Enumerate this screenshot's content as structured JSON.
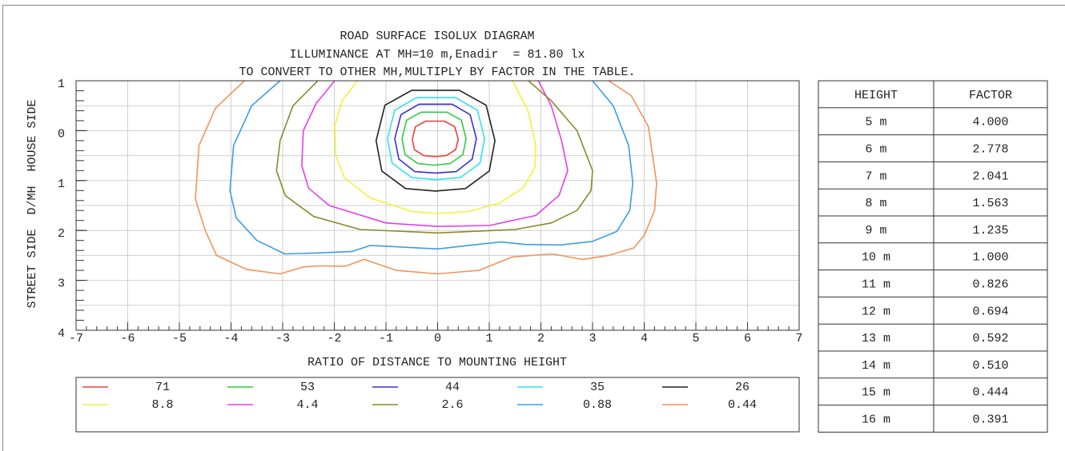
{
  "chart_data": {
    "type": "contour",
    "title": "ROAD SURFACE ISOLUX DIAGRAM",
    "subtitle": [
      "ILLUMINANCE AT MH=10 m,Enadir  = 81.80 lx",
      "TO CONVERT TO OTHER MH,MULTIPLY BY FACTOR IN THE TABLE."
    ],
    "xlabel": "RATIO OF DISTANCE TO MOUNTING HEIGHT",
    "ylabel": "STREET SIDE  D/MH  HOUSE SIDE",
    "xlim": [
      -7,
      7
    ],
    "ylim": [
      4,
      -1
    ],
    "xticks": [
      -7,
      -6,
      -5,
      -4,
      -3,
      -2,
      -1,
      0,
      1,
      2,
      3,
      4,
      5,
      6,
      7
    ],
    "yticks": [
      {
        "value": -1,
        "label": "1"
      },
      0,
      1,
      2,
      3,
      4
    ],
    "grid": true,
    "ygrid_step": 0.5,
    "minor_tick_step": 0.2,
    "series": [
      {
        "name": "71",
        "color": "#e8413c",
        "closed": true,
        "x": [
          -0.49,
          -0.43,
          -0.23,
          0.13,
          0.33,
          0.4,
          0.35,
          0.17,
          -0.05,
          -0.27,
          -0.45
        ],
        "y": [
          0.17,
          -0.08,
          -0.19,
          -0.19,
          -0.08,
          0.17,
          0.38,
          0.5,
          0.52,
          0.5,
          0.38
        ]
      },
      {
        "name": "53",
        "color": "#2ecc40",
        "closed": true,
        "x": [
          -0.69,
          -0.6,
          -0.32,
          0.18,
          0.46,
          0.55,
          0.49,
          0.24,
          -0.07,
          -0.38,
          -0.63
        ],
        "y": [
          0.16,
          -0.21,
          -0.37,
          -0.37,
          -0.21,
          0.16,
          0.48,
          0.66,
          0.69,
          0.66,
          0.48
        ]
      },
      {
        "name": "44",
        "color": "#3a2fd0",
        "closed": true,
        "x": [
          -0.83,
          -0.71,
          -0.36,
          0.28,
          0.63,
          0.75,
          0.67,
          0.36,
          -0.04,
          -0.44,
          -0.75
        ],
        "y": [
          0.16,
          -0.32,
          -0.53,
          -0.53,
          -0.32,
          0.16,
          0.57,
          0.82,
          0.85,
          0.82,
          0.57
        ]
      },
      {
        "name": "35",
        "color": "#33e0f0",
        "closed": true,
        "x": [
          -0.97,
          -0.83,
          -0.41,
          0.35,
          0.77,
          0.91,
          0.82,
          0.44,
          -0.03,
          -0.5,
          -0.88
        ],
        "y": [
          0.16,
          -0.41,
          -0.66,
          -0.66,
          -0.41,
          0.16,
          0.65,
          0.94,
          0.98,
          0.94,
          0.65
        ]
      },
      {
        "name": "26",
        "color": "#222222",
        "closed": true,
        "x": [
          -1.19,
          -1.02,
          -0.5,
          0.42,
          0.94,
          1.11,
          1.0,
          0.54,
          -0.04,
          -0.62,
          -1.08
        ],
        "y": [
          0.2,
          -0.51,
          -0.81,
          -0.81,
          -0.51,
          0.2,
          0.81,
          1.16,
          1.21,
          1.16,
          0.81
        ]
      },
      {
        "name": "8.8",
        "color": "#f5f03a",
        "closed": false,
        "x": [
          -1.55,
          -1.85,
          -1.99,
          -1.97,
          -1.8,
          -1.3,
          -0.5,
          0,
          0.6,
          1.2,
          1.65,
          1.88,
          1.9,
          1.75,
          1.45
        ],
        "y": [
          -1,
          -0.6,
          -0.1,
          0.5,
          0.95,
          1.35,
          1.62,
          1.66,
          1.62,
          1.45,
          1.15,
          0.75,
          0.3,
          -0.4,
          -1
        ]
      },
      {
        "name": "4.4",
        "color": "#e83ee8",
        "closed": false,
        "x": [
          -1.99,
          -2.35,
          -2.6,
          -2.63,
          -2.5,
          -2.1,
          -1,
          0,
          1,
          1.9,
          2.35,
          2.52,
          2.4,
          2.2,
          1.95
        ],
        "y": [
          -1,
          -0.55,
          0,
          0.7,
          1.15,
          1.5,
          1.85,
          1.92,
          1.9,
          1.7,
          1.3,
          0.8,
          0.2,
          -0.5,
          -1
        ]
      },
      {
        "name": "2.6",
        "color": "#8b8a2a",
        "closed": false,
        "x": [
          -2.32,
          -2.8,
          -3.05,
          -3.12,
          -2.95,
          -2.4,
          -1.5,
          0,
          1.5,
          2.2,
          2.7,
          2.97,
          3.0,
          2.7,
          2.2,
          1.76
        ],
        "y": [
          -1,
          -0.5,
          0.2,
          0.8,
          1.3,
          1.72,
          1.98,
          2.05,
          1.98,
          1.85,
          1.6,
          1.2,
          0.8,
          0.0,
          -0.6,
          -1
        ]
      },
      {
        "name": "0.88",
        "color": "#3b9ee6",
        "closed": false,
        "x": [
          -3.05,
          -3.6,
          -3.95,
          -4.02,
          -3.9,
          -3.5,
          -2.96,
          -2.3,
          -1.65,
          -1.3,
          0,
          0.6,
          1.22,
          1.7,
          2.38,
          3.0,
          3.47,
          3.72,
          3.78,
          3.7,
          3.4,
          3.0
        ],
        "y": [
          -1,
          -0.5,
          0.3,
          1.2,
          1.75,
          2.2,
          2.47,
          2.45,
          2.42,
          2.3,
          2.37,
          2.3,
          2.23,
          2.28,
          2.29,
          2.22,
          2.02,
          1.6,
          1.05,
          0.3,
          -0.5,
          -1
        ]
      },
      {
        "name": "0.44",
        "color": "#f0945a",
        "closed": false,
        "x": [
          -3.74,
          -4.3,
          -4.62,
          -4.69,
          -4.5,
          -4.28,
          -3.7,
          -3.05,
          -2.6,
          -2.27,
          -1.8,
          -1.42,
          -0.8,
          0,
          0.8,
          1.45,
          2.22,
          2.8,
          3.31,
          3.8,
          4.0,
          4.2,
          4.24,
          4.08,
          3.75,
          3.31
        ],
        "y": [
          -1,
          -0.45,
          0.3,
          1.37,
          2.0,
          2.5,
          2.78,
          2.87,
          2.73,
          2.71,
          2.72,
          2.58,
          2.8,
          2.87,
          2.8,
          2.53,
          2.47,
          2.58,
          2.5,
          2.35,
          2.1,
          1.6,
          1.05,
          -0.08,
          -0.7,
          -1
        ]
      }
    ]
  },
  "table": {
    "header": [
      "HEIGHT",
      "FACTOR"
    ],
    "rows": [
      [
        "5 m",
        "4.000"
      ],
      [
        "6 m",
        "2.778"
      ],
      [
        "7 m",
        "2.041"
      ],
      [
        "8 m",
        "1.563"
      ],
      [
        "9 m",
        "1.235"
      ],
      [
        "10 m",
        "1.000"
      ],
      [
        "11 m",
        "0.826"
      ],
      [
        "12 m",
        "0.694"
      ],
      [
        "13 m",
        "0.592"
      ],
      [
        "14 m",
        "0.510"
      ],
      [
        "15 m",
        "0.444"
      ],
      [
        "16 m",
        "0.391"
      ]
    ]
  }
}
